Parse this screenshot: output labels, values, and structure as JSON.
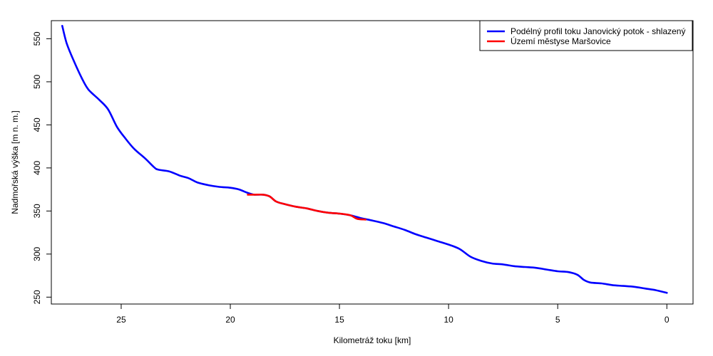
{
  "chart_data": {
    "type": "line",
    "title": "",
    "xlabel": "Kilometráž toku [km]",
    "ylabel": "Nadmořská výška [m n. m.]",
    "xlim": [
      28.2,
      -1.2
    ],
    "ylim": [
      242,
      571
    ],
    "x_reversed": true,
    "grid": false,
    "legend_position": "top-right",
    "x_ticks": [
      25,
      20,
      15,
      10,
      5,
      0
    ],
    "y_ticks": [
      250,
      300,
      350,
      400,
      450,
      500,
      550
    ],
    "series": [
      {
        "name": "Podélný profil toku Janovický potok - shlazený",
        "color": "#0000ff",
        "points": [
          [
            27.7,
            565
          ],
          [
            27.5,
            545
          ],
          [
            27.2,
            526
          ],
          [
            26.8,
            504
          ],
          [
            26.5,
            491
          ],
          [
            26.0,
            479
          ],
          [
            25.6,
            468
          ],
          [
            25.2,
            448
          ],
          [
            24.8,
            434
          ],
          [
            24.4,
            422
          ],
          [
            23.9,
            411
          ],
          [
            23.5,
            401
          ],
          [
            23.3,
            398
          ],
          [
            22.8,
            396
          ],
          [
            22.3,
            391
          ],
          [
            21.9,
            388
          ],
          [
            21.5,
            383
          ],
          [
            21.0,
            380
          ],
          [
            20.5,
            378
          ],
          [
            20.0,
            377
          ],
          [
            19.6,
            375
          ],
          [
            19.2,
            371
          ],
          [
            18.9,
            369
          ],
          [
            18.5,
            369
          ],
          [
            18.2,
            367
          ],
          [
            17.9,
            361
          ],
          [
            17.5,
            358
          ],
          [
            17.0,
            355
          ],
          [
            16.5,
            353
          ],
          [
            16.0,
            350
          ],
          [
            15.5,
            348
          ],
          [
            15.0,
            347
          ],
          [
            14.5,
            345
          ],
          [
            14.2,
            343
          ],
          [
            13.9,
            341
          ],
          [
            13.5,
            339
          ],
          [
            13.0,
            336
          ],
          [
            12.5,
            332
          ],
          [
            12.0,
            328
          ],
          [
            11.5,
            323
          ],
          [
            11.0,
            319
          ],
          [
            10.5,
            315
          ],
          [
            10.0,
            311
          ],
          [
            9.5,
            306
          ],
          [
            9.0,
            297
          ],
          [
            8.5,
            292
          ],
          [
            8.0,
            289
          ],
          [
            7.5,
            288
          ],
          [
            7.0,
            286
          ],
          [
            6.5,
            285
          ],
          [
            6.0,
            284
          ],
          [
            5.5,
            282
          ],
          [
            5.0,
            280
          ],
          [
            4.5,
            279
          ],
          [
            4.1,
            276
          ],
          [
            3.8,
            270
          ],
          [
            3.5,
            267
          ],
          [
            3.0,
            266
          ],
          [
            2.5,
            264
          ],
          [
            2.0,
            263
          ],
          [
            1.5,
            262
          ],
          [
            1.0,
            260
          ],
          [
            0.5,
            258
          ],
          [
            0.0,
            255
          ]
        ]
      },
      {
        "name": "Území městyse Maršovice",
        "color": "#ff0000",
        "points": [
          [
            19.2,
            369
          ],
          [
            18.9,
            369
          ],
          [
            18.5,
            369
          ],
          [
            18.2,
            367
          ],
          [
            17.9,
            361
          ],
          [
            17.5,
            358
          ],
          [
            17.0,
            355
          ],
          [
            16.5,
            353
          ],
          [
            16.0,
            350
          ],
          [
            15.5,
            348
          ],
          [
            15.0,
            347
          ],
          [
            14.5,
            345
          ],
          [
            14.2,
            341
          ],
          [
            13.8,
            340
          ]
        ]
      }
    ]
  }
}
